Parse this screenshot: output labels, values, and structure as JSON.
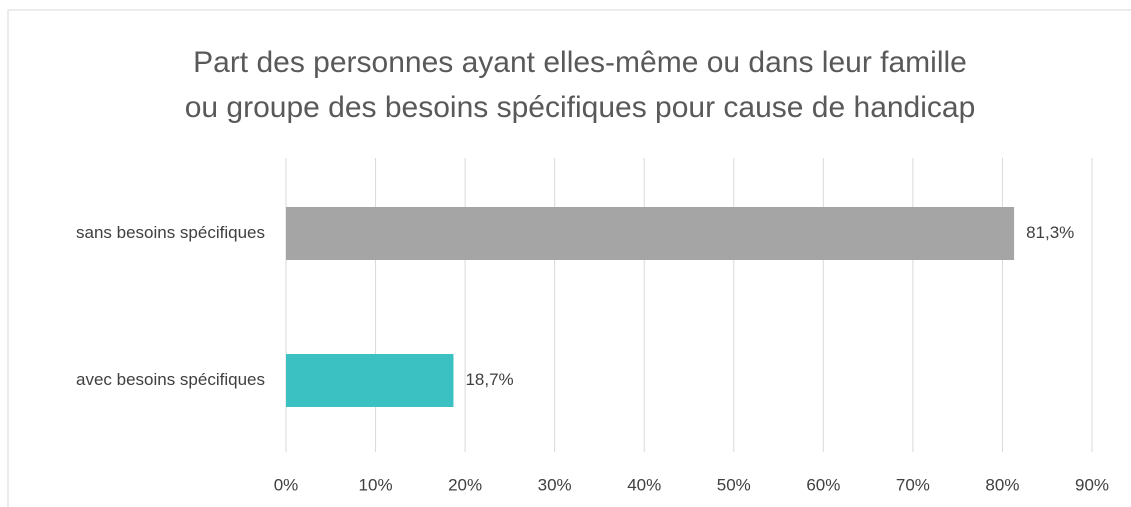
{
  "chart_data": {
    "type": "barh",
    "title": [
      "Part des personnes ayant elles-même ou dans leur famille",
      "ou groupe des besoins spécifiques pour cause de handicap"
    ],
    "categories": [
      "sans besoins spécifiques",
      "avec besoins spécifiques"
    ],
    "values": [
      81.3,
      18.7
    ],
    "value_labels": [
      "81,3%",
      "18,7%"
    ],
    "colors": [
      "#a5a5a5",
      "#3bc1c2"
    ],
    "xlim": [
      0,
      90
    ],
    "xticks": [
      {
        "value": 0,
        "label": "0%"
      },
      {
        "value": 10,
        "label": "10%"
      },
      {
        "value": 20,
        "label": "20%"
      },
      {
        "value": 30,
        "label": "30%"
      },
      {
        "value": 40,
        "label": "40%"
      },
      {
        "value": 50,
        "label": "50%"
      },
      {
        "value": 60,
        "label": "60%"
      },
      {
        "value": 70,
        "label": "70%"
      },
      {
        "value": 80,
        "label": "80%"
      },
      {
        "value": 90,
        "label": "90%"
      }
    ],
    "grid": true
  }
}
